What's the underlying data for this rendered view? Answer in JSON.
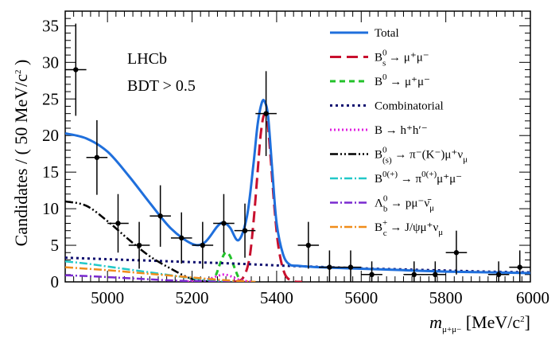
{
  "chart_data": {
    "type": "scatter",
    "experiment": "LHCb",
    "cut_label": "BDT > 0.5",
    "xlabel": {
      "var": "m",
      "sub": "μ+μ−",
      "unit": " [MeV/c",
      "unit_sup": "2",
      "unit_close": "]"
    },
    "ylabel": {
      "main": "Candidates / ( 50 MeV/c",
      "sup": "2",
      "close": ")"
    },
    "xlim": [
      4900,
      6000
    ],
    "ylim": [
      0,
      37
    ],
    "xticks": [
      5000,
      5200,
      5400,
      5600,
      5800,
      6000
    ],
    "yticks": [
      0,
      5,
      10,
      15,
      20,
      25,
      30,
      35
    ],
    "data_points": [
      {
        "x": 4925,
        "y": 29,
        "err": 6.3
      },
      {
        "x": 4975,
        "y": 17,
        "err": 5.1
      },
      {
        "x": 5025,
        "y": 8,
        "err": 4.0
      },
      {
        "x": 5075,
        "y": 5,
        "err": 3.2
      },
      {
        "x": 5125,
        "y": 9,
        "err": 4.2
      },
      {
        "x": 5175,
        "y": 6,
        "err": 3.5
      },
      {
        "x": 5225,
        "y": 5,
        "err": 3.2
      },
      {
        "x": 5275,
        "y": 8,
        "err": 4.0
      },
      {
        "x": 5325,
        "y": 7,
        "err": 3.7
      },
      {
        "x": 5375,
        "y": 23,
        "err": 5.8
      },
      {
        "x": 5475,
        "y": 5,
        "err": 3.2
      },
      {
        "x": 5525,
        "y": 2,
        "err": 2.3
      },
      {
        "x": 5575,
        "y": 2,
        "err": 2.3
      },
      {
        "x": 5625,
        "y": 1,
        "err": 1.8
      },
      {
        "x": 5725,
        "y": 1,
        "err": 1.8
      },
      {
        "x": 5775,
        "y": 1,
        "err": 1.8
      },
      {
        "x": 5825,
        "y": 4,
        "err": 3.0
      },
      {
        "x": 5925,
        "y": 1,
        "err": 1.8
      },
      {
        "x": 5975,
        "y": 2,
        "err": 2.3
      }
    ],
    "x_bin_half_width": 25,
    "curves": [
      {
        "name": "Total",
        "color": "#1f6fdc",
        "dash": "",
        "width": 3,
        "x": [
          4900,
          4950,
          5000,
          5050,
          5100,
          5150,
          5200,
          5230,
          5260,
          5275,
          5290,
          5310,
          5330,
          5345,
          5355,
          5365,
          5372,
          5380,
          5390,
          5400,
          5415,
          5430,
          5450,
          5500,
          5600,
          5700,
          5800,
          5900,
          6000
        ],
        "y": [
          20.3,
          19.6,
          17.8,
          14.5,
          10.8,
          7.3,
          5.2,
          5.4,
          7.6,
          8.1,
          7.4,
          5.7,
          9,
          16,
          21.5,
          24.5,
          24.6,
          22.5,
          15,
          8,
          3.8,
          2.4,
          2.2,
          2.0,
          1.8,
          1.6,
          1.4,
          1.3,
          1.2
        ]
      },
      {
        "name": "Bs",
        "color": "#c8102e",
        "dash": "14,7",
        "width": 3,
        "x": [
          5300,
          5320,
          5335,
          5345,
          5355,
          5362,
          5370,
          5378,
          5385,
          5395,
          5405,
          5420,
          5440,
          5460
        ],
        "y": [
          0,
          0.5,
          3,
          8,
          15,
          20,
          22.8,
          22,
          17.5,
          10,
          4.5,
          1,
          0.1,
          0
        ]
      },
      {
        "name": "B0",
        "color": "#22c22a",
        "dash": "7,5",
        "width": 3,
        "x": [
          5240,
          5255,
          5265,
          5275,
          5282,
          5290,
          5300,
          5310,
          5320
        ],
        "y": [
          0,
          0.8,
          2.3,
          3.7,
          4.0,
          3.5,
          2.0,
          0.6,
          0
        ]
      },
      {
        "name": "Combinatorial",
        "color": "#101070",
        "dash": "3,4",
        "width": 3,
        "x": [
          4900,
          5000,
          5100,
          5200,
          5300,
          5400,
          5500,
          5600,
          5700,
          5800,
          5900,
          6000
        ],
        "y": [
          3.3,
          3.1,
          2.9,
          2.7,
          2.5,
          2.25,
          2.05,
          1.85,
          1.7,
          1.55,
          1.4,
          1.3
        ]
      },
      {
        "name": "Bhh",
        "color": "#e020e0",
        "dash": "2,3",
        "width": 3,
        "x": [
          5180,
          5210,
          5240,
          5260,
          5275,
          5290,
          5310,
          5340
        ],
        "y": [
          0,
          0.1,
          0.4,
          0.8,
          1.0,
          0.8,
          0.3,
          0
        ]
      },
      {
        "name": "Bpimunu",
        "color": "#000000",
        "dash": "10,3,2,3,2,3",
        "width": 2.5,
        "x": [
          4900,
          4950,
          5000,
          5050,
          5100,
          5150,
          5200,
          5250
        ],
        "y": [
          11,
          10.4,
          8.3,
          5.8,
          3.5,
          1.8,
          0.4,
          0
        ]
      },
      {
        "name": "Bpimumu",
        "color": "#22c8c8",
        "dash": "10,3,2,3",
        "width": 2.5,
        "x": [
          4900,
          4950,
          5000,
          5050,
          5100,
          5150,
          5200,
          5240,
          5280,
          5300
        ],
        "y": [
          2.8,
          2.5,
          2.1,
          1.7,
          1.3,
          0.9,
          0.5,
          0.25,
          0.05,
          0
        ]
      },
      {
        "name": "Lambdab",
        "color": "#7a2ad0",
        "dash": "10,3,2,3",
        "width": 2.5,
        "x": [
          4900,
          4950,
          5000,
          5050,
          5100,
          5150,
          5200,
          5250,
          5300
        ],
        "y": [
          0.9,
          0.8,
          0.65,
          0.5,
          0.35,
          0.2,
          0.1,
          0.03,
          0
        ]
      },
      {
        "name": "Bc",
        "color": "#f08c1a",
        "dash": "10,3,2,3",
        "width": 2.5,
        "x": [
          4900,
          4950,
          5000,
          5050,
          5100,
          5150,
          5200,
          5250,
          5300,
          5350
        ],
        "y": [
          2.0,
          1.8,
          1.6,
          1.35,
          1.1,
          0.85,
          0.6,
          0.35,
          0.15,
          0
        ]
      }
    ],
    "legend": [
      {
        "key": "total",
        "html": "Total"
      },
      {
        "key": "bs",
        "main": "B",
        "sub": "s",
        "sup": "0",
        "rest": " → μ⁺μ⁻"
      },
      {
        "key": "b0",
        "main": "B",
        "sup": "0",
        "rest": " → μ⁺μ⁻"
      },
      {
        "key": "comb",
        "html": "Combinatorial"
      },
      {
        "key": "bhh",
        "html": "B → h⁺h′⁻"
      },
      {
        "key": "bpimunu",
        "main": "B",
        "sub": "(s)",
        "sup": "0",
        "rest": " → π⁻(K⁻)μ⁺ν",
        "tail_sub": "μ"
      },
      {
        "key": "bpimumu",
        "main": "B",
        "sup": "0(+)",
        "rest": " → π",
        "rest_sup": "0(+)",
        "rest2": "μ⁺μ⁻"
      },
      {
        "key": "lb",
        "main": "Λ",
        "sub": "b",
        "sup": "0",
        "rest": " → pμ⁻ν̄",
        "tail_sub": "μ"
      },
      {
        "key": "bc",
        "main": "B",
        "sub": "c",
        "sup": "+",
        "rest": " → J/ψμ⁺ν",
        "tail_sub": "μ"
      }
    ]
  }
}
